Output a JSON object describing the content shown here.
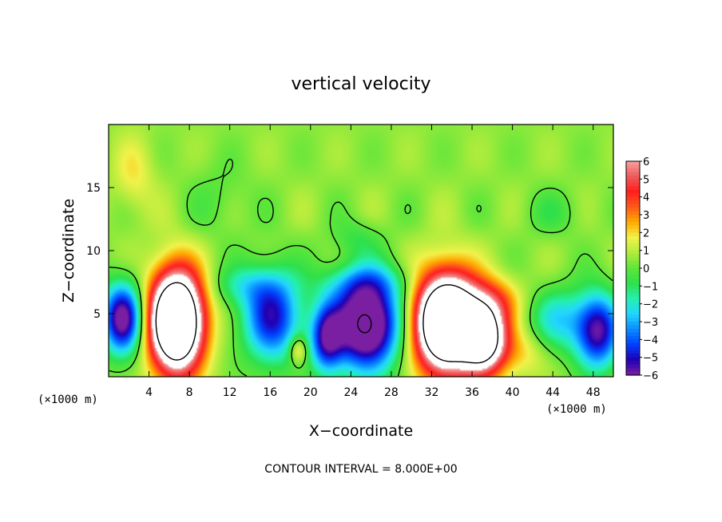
{
  "chart_data": {
    "type": "heatmap",
    "title": "vertical velocity",
    "xlabel": "X−coordinate",
    "ylabel": "Z−coordinate",
    "x_unit_label": "(×1000 m)",
    "y_unit_label": "(×1000 m)",
    "xlim": [
      0,
      50
    ],
    "ylim": [
      0,
      20
    ],
    "x_ticks": [
      4,
      8,
      12,
      16,
      20,
      24,
      28,
      32,
      36,
      40,
      44,
      48
    ],
    "y_ticks": [
      5,
      10,
      15
    ],
    "colorbar": {
      "ticks": [
        "6",
        "5",
        "4",
        "3",
        "2",
        "1",
        "0",
        "−1",
        "−2",
        "−3",
        "−4",
        "−5",
        "−6"
      ],
      "min": -6,
      "max": 6,
      "colors": [
        "#7b1fa2",
        "#1f00b4",
        "#0040ff",
        "#0a8cff",
        "#22d6ff",
        "#24f0b0",
        "#2fe04a",
        "#5fe63a",
        "#b0ec3c",
        "#f2f24a",
        "#ffaa00",
        "#ff5a1a",
        "#ff1e1e",
        "#f05a5a",
        "#f8a0a0"
      ]
    },
    "background_value": 0.5,
    "features": [
      {
        "kind": "updraft",
        "x": 6.7,
        "z": 4.4,
        "peak": 14,
        "rx": 2.6,
        "rz": 3.9
      },
      {
        "kind": "updraft",
        "x": 33.4,
        "z": 4.3,
        "peak": 14,
        "rx": 3.0,
        "rz": 3.8
      },
      {
        "kind": "updraft",
        "x": 37.2,
        "z": 3.0,
        "peak": 9,
        "rx": 2.2,
        "rz": 2.7
      },
      {
        "kind": "updraft",
        "x": 38.0,
        "z": 6.0,
        "peak": 2.5,
        "rx": 3.0,
        "rz": 2.0
      },
      {
        "kind": "updraft",
        "x": 18.8,
        "z": 2.1,
        "peak": 2.6,
        "rx": 0.9,
        "rz": 1.1
      },
      {
        "kind": "downdraft",
        "x": 25.5,
        "z": 4.2,
        "peak": -9,
        "rx": 3.3,
        "rz": 3.6
      },
      {
        "kind": "downdraft",
        "x": 16.2,
        "z": 4.8,
        "peak": -5.5,
        "rx": 2.9,
        "rz": 3.6
      },
      {
        "kind": "downdraft",
        "x": 21.6,
        "z": 3.0,
        "peak": -5,
        "rx": 1.6,
        "rz": 2.7
      },
      {
        "kind": "downdraft",
        "x": 1.4,
        "z": 4.6,
        "peak": -7,
        "rx": 2.0,
        "rz": 2.8
      },
      {
        "kind": "downdraft",
        "x": 48.5,
        "z": 3.6,
        "peak": -6,
        "rx": 2.2,
        "rz": 3.0
      },
      {
        "kind": "downdraft",
        "x": 44.5,
        "z": 4.5,
        "peak": -2.8,
        "rx": 3.0,
        "rz": 2.5
      },
      {
        "kind": "downdraft",
        "x": 13.2,
        "z": 7.2,
        "peak": -1.6,
        "rx": 3.0,
        "rz": 1.6
      },
      {
        "kind": "downdraft",
        "x": 24.5,
        "z": 11.0,
        "peak": -1.0,
        "rx": 2.5,
        "rz": 1.5
      },
      {
        "kind": "downdraft",
        "x": 25.5,
        "z": 7.5,
        "peak": -1.5,
        "rx": 5.0,
        "rz": 1.5
      },
      {
        "kind": "downdraft",
        "x": 11.0,
        "z": 14.0,
        "peak": -0.7,
        "rx": 3.0,
        "rz": 3.0
      },
      {
        "kind": "downdraft",
        "x": 44.0,
        "z": 13.0,
        "peak": -0.9,
        "rx": 3.0,
        "rz": 1.8
      },
      {
        "kind": "updraft",
        "x": 2.5,
        "z": 16.0,
        "peak": 1.3,
        "rx": 2.0,
        "rz": 3.0
      },
      {
        "kind": "updraft",
        "x": 41.0,
        "z": 2.0,
        "peak": 1.5,
        "rx": 2.5,
        "rz": 2.0
      }
    ],
    "annotation": "CONTOUR INTERVAL = 8.000E+00",
    "grid": false
  }
}
